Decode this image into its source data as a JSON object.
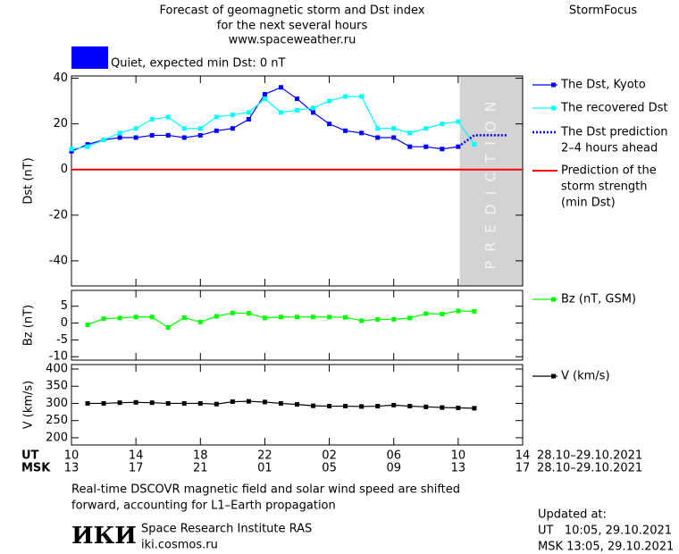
{
  "header": {
    "title": [
      "Forecast of geomagnetic storm and Dst index",
      "for the next several hours",
      "www.spaceweather.ru"
    ],
    "brand": "StormFocus",
    "status": "Quiet, expected min Dst: 0 nT",
    "status_color": "#0000ff"
  },
  "chart_data": [
    {
      "type": "line",
      "ylabel": "Dst (nT)",
      "xlim": [
        10,
        38
      ],
      "ylim": [
        -51,
        41
      ],
      "yticks": [
        -40,
        -20,
        0,
        20,
        40
      ],
      "prediction_band": {
        "label": "PREDICTION",
        "from": 34.1,
        "color": "#d3d3d3"
      },
      "series": [
        {
          "name": [
            "The Dst, Kyoto"
          ],
          "color": "#0000ff",
          "marker": "square",
          "x": [
            10,
            11,
            12,
            13,
            14,
            15,
            16,
            17,
            18,
            19,
            20,
            21,
            22,
            23,
            24,
            25,
            26,
            27,
            28,
            29,
            30,
            31,
            32,
            33,
            34
          ],
          "values": [
            8,
            11,
            13,
            14,
            14,
            15,
            15,
            14,
            15,
            17,
            18,
            22,
            33,
            36,
            31,
            25,
            20,
            17,
            16,
            14,
            14,
            10,
            10,
            9,
            10
          ]
        },
        {
          "name": [
            "The recovered Dst"
          ],
          "color": "#00ffff",
          "marker": "square",
          "x": [
            10,
            11,
            12,
            13,
            14,
            15,
            16,
            17,
            18,
            19,
            20,
            21,
            22,
            23,
            24,
            25,
            26,
            27,
            28,
            29,
            30,
            31,
            32,
            33,
            34,
            35
          ],
          "values": [
            9,
            10,
            13,
            16,
            18,
            22,
            23,
            18,
            18,
            23,
            24,
            25,
            31,
            25,
            26,
            27,
            30,
            32,
            32,
            18,
            18,
            16,
            18,
            20,
            21,
            11
          ]
        },
        {
          "name": [
            "The Dst prediction",
            "2–4 hours ahead"
          ],
          "color": "#0000ff",
          "dash": "dotted",
          "x": [
            34,
            35,
            37
          ],
          "values": [
            10,
            15,
            15
          ]
        },
        {
          "name": [
            "Prediction of the",
            "storm strength",
            "(min Dst)"
          ],
          "color": "#ff0000",
          "hline": 0
        }
      ]
    },
    {
      "type": "line",
      "ylabel": "Bz (nT)",
      "xlim": [
        10,
        38
      ],
      "ylim": [
        -11,
        9.7
      ],
      "yticks": [
        -10,
        -5,
        0,
        5
      ],
      "series": [
        {
          "name": [
            "Bz (nT, GSM)"
          ],
          "color": "#00ff00",
          "marker": "square",
          "x": [
            11,
            12,
            13,
            14,
            15,
            16,
            17,
            18,
            19,
            20,
            21,
            22,
            23,
            24,
            25,
            26,
            27,
            28,
            29,
            30,
            31,
            32,
            33,
            34,
            35
          ],
          "values": [
            -0.5,
            1.3,
            1.5,
            1.8,
            1.8,
            -1.3,
            1.6,
            0.3,
            2.0,
            3.0,
            2.9,
            1.5,
            1.8,
            1.8,
            1.8,
            1.8,
            1.7,
            0.7,
            1.1,
            1.1,
            1.5,
            2.8,
            2.7,
            3.6,
            3.5
          ]
        }
      ]
    },
    {
      "type": "line",
      "ylabel": "V (km/s)",
      "xlim": [
        10,
        38
      ],
      "ylim": [
        179,
        413
      ],
      "yticks": [
        200,
        250,
        300,
        350,
        400
      ],
      "xticks": [
        10,
        14,
        18,
        22,
        {
          "value": 26,
          "label": "02"
        },
        {
          "value": 30,
          "label": "06"
        },
        {
          "value": 34,
          "label": "10"
        },
        {
          "value": 38,
          "label": "14"
        }
      ],
      "ut_label": "UT",
      "msk_label": "MSK",
      "msk_labels": [
        "13",
        "17",
        "21",
        "01",
        "05",
        "09",
        "13",
        "17"
      ],
      "date_range": "28.10–29.10.2021",
      "series": [
        {
          "name": [
            "V (km/s)"
          ],
          "color": "#000000",
          "marker": "square",
          "x": [
            11,
            12,
            13,
            14,
            15,
            16,
            17,
            18,
            19,
            20,
            21,
            22,
            23,
            24,
            25,
            26,
            27,
            28,
            29,
            30,
            31,
            32,
            33,
            34,
            35
          ],
          "values": [
            300,
            300,
            302,
            303,
            302,
            300,
            300,
            300,
            298,
            305,
            306,
            304,
            300,
            297,
            293,
            292,
            292,
            291,
            292,
            295,
            292,
            290,
            288,
            287,
            286
          ]
        }
      ]
    }
  ],
  "footer": {
    "note": [
      "Real-time DSCOVR magnetic field and solar wind speed are shifted",
      "forward, accounting for L1–Earth propagation"
    ],
    "logo": "ИКИ",
    "institute": "Space Research Institute RAS",
    "site": "iki.cosmos.ru",
    "updated": [
      "Updated at:",
      "UT   10:05, 29.10.2021",
      "MSK 13:05, 29.10.2021"
    ]
  }
}
